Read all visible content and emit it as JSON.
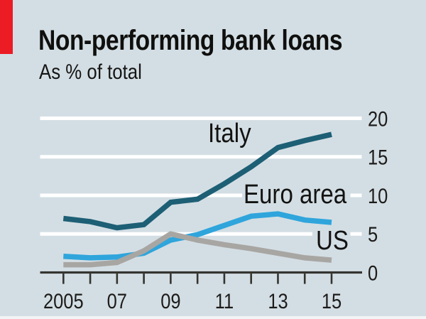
{
  "header": {
    "title": "Non-performing bank loans",
    "subtitle": "As % of total"
  },
  "colors": {
    "background": "#d3dee4",
    "accent_red": "#ec1c24",
    "italy_line": "#1d5f75",
    "euro_area_line": "#2fa5dc",
    "us_line": "#a8a6a3",
    "gridline": "#ffffff",
    "axis": "#35342f",
    "text": "#1d1c1a"
  },
  "chart_data": {
    "type": "line",
    "title": "Non-performing bank loans",
    "subtitle": "As % of total",
    "x": [
      2005,
      2006,
      2007,
      2008,
      2009,
      2010,
      2011,
      2012,
      2013,
      2014,
      2015
    ],
    "x_tick_years": [
      2005,
      2007,
      2009,
      2011,
      2013,
      2015
    ],
    "x_tick_labels": [
      "2005",
      "07",
      "09",
      "11",
      "13",
      "15"
    ],
    "y_ticks": [
      0,
      5,
      10,
      15,
      20
    ],
    "y_tick_labels": [
      "0",
      "5",
      "10",
      "15",
      "20"
    ],
    "ylim": [
      0,
      20
    ],
    "y_axis_side": "right",
    "grid": "horizontal white gridlines at 5-unit intervals",
    "legend_position": "inline labels next to lines",
    "series": [
      {
        "name": "Italy",
        "color": "#1d5f75",
        "values": [
          7.0,
          6.6,
          5.8,
          6.2,
          9.1,
          9.5,
          11.5,
          13.7,
          16.2,
          17.1,
          17.9
        ]
      },
      {
        "name": "Euro area",
        "color": "#2fa5dc",
        "values": [
          2.1,
          1.9,
          2.0,
          2.5,
          4.2,
          4.9,
          6.1,
          7.3,
          7.6,
          6.8,
          6.5
        ]
      },
      {
        "name": "US",
        "color": "#a8a6a3",
        "values": [
          1.0,
          1.0,
          1.3,
          2.8,
          5.0,
          4.2,
          3.6,
          3.1,
          2.5,
          1.9,
          1.6
        ]
      }
    ]
  }
}
